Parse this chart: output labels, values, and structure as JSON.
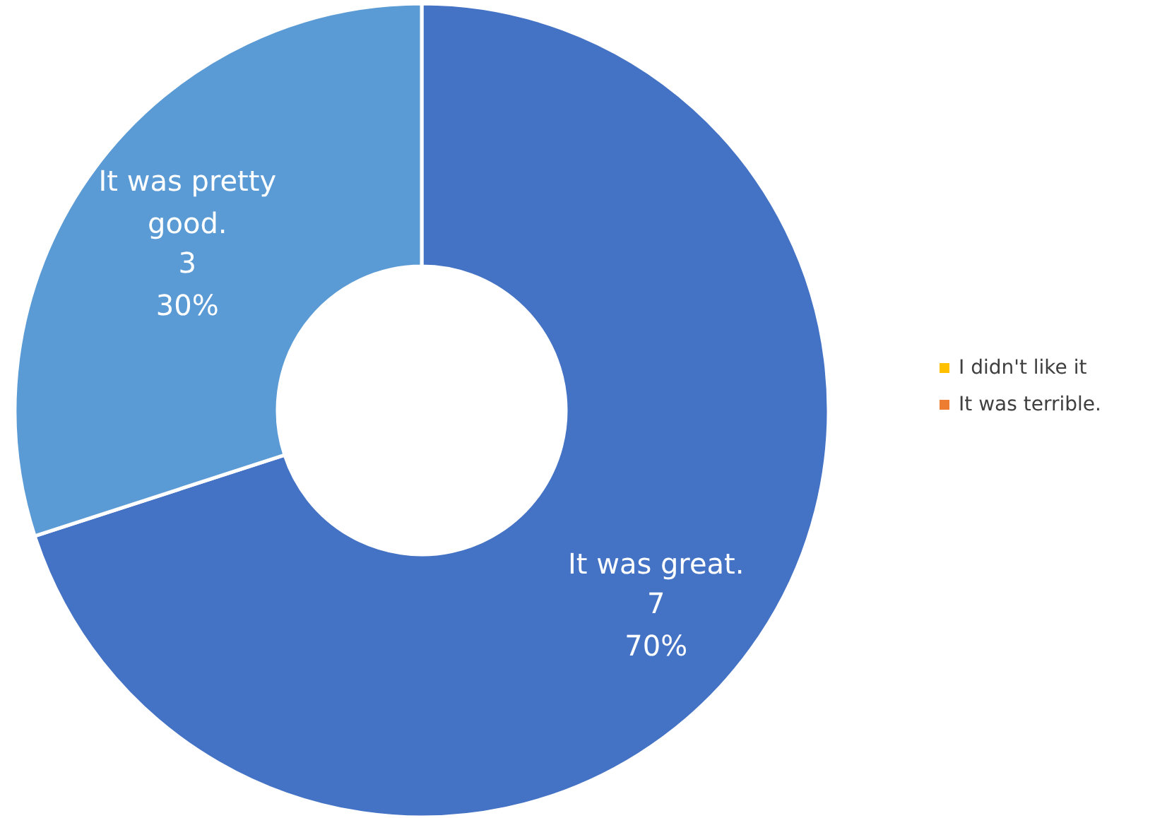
{
  "chart_data": {
    "type": "donut",
    "categories": [
      "It was great.",
      "It was pretty good.",
      "I didn't like it",
      "It was terrible."
    ],
    "values": [
      7,
      3,
      0,
      0
    ],
    "colors": [
      "#4472c4",
      "#5b9bd5",
      "#ffc000",
      "#ed7d31"
    ],
    "value_labels": [
      "7\n70%",
      "3\n30%",
      null,
      null
    ],
    "legend": "right"
  }
}
